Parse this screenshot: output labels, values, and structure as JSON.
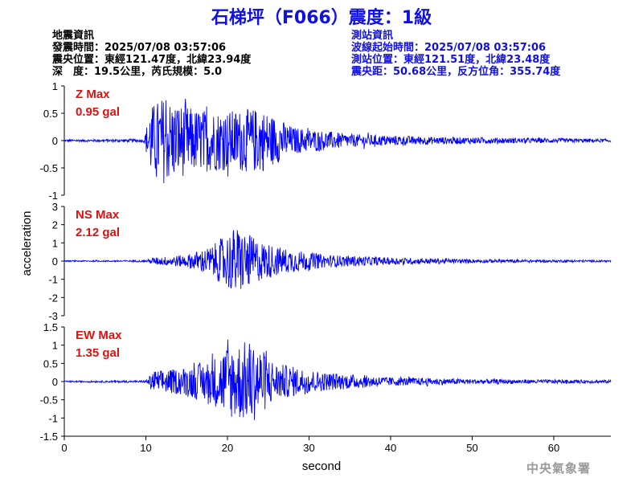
{
  "title": "石梯坪（F066）震度：1級",
  "quake_info": {
    "heading": "地震資訊",
    "origin_time": "發震時間：2025/07/08 03:57:06",
    "epicenter": "震央位置：東經121.47度，北緯23.94度",
    "depth_magnitude": "深　度：19.5公里，芮氏規模：5.0"
  },
  "station_info": {
    "heading": "測站資訊",
    "wave_start": "波線起始時間：2025/07/08 03:57:06",
    "station_location": "測站位置：東經121.51度，北緯23.48度",
    "distance_azimuth": "震央距：50.68公里，反方位角：355.74度"
  },
  "agency": "中央氣象署",
  "chart_data": [
    {
      "type": "line",
      "component": "Z",
      "label_line1": "Z Max",
      "label_line2": "0.95 gal",
      "max_gal": 0.95,
      "ylim": [
        -1,
        1
      ],
      "yticks": [
        "1",
        "0.5",
        "0",
        "-0.5",
        "-1"
      ],
      "envelope": {
        "x": [
          0,
          9.8,
          10.5,
          12,
          16,
          20,
          24,
          28,
          35,
          45,
          55,
          67
        ],
        "y": [
          0.02,
          0.03,
          0.62,
          0.8,
          0.58,
          0.55,
          0.6,
          0.25,
          0.12,
          0.07,
          0.05,
          0.03
        ]
      }
    },
    {
      "type": "line",
      "component": "NS",
      "label_line1": "NS Max",
      "label_line2": "2.12 gal",
      "max_gal": 2.12,
      "ylim": [
        -3,
        3
      ],
      "yticks": [
        "3",
        "2",
        "1",
        "0",
        "-1",
        "-2",
        "-3"
      ],
      "envelope": {
        "x": [
          0,
          10,
          11,
          15,
          18,
          21,
          24,
          27,
          32,
          40,
          50,
          67
        ],
        "y": [
          0.03,
          0.05,
          0.2,
          0.35,
          0.8,
          1.9,
          1.1,
          0.7,
          0.35,
          0.2,
          0.1,
          0.05
        ]
      }
    },
    {
      "type": "line",
      "component": "EW",
      "label_line1": "EW Max",
      "label_line2": "1.35 gal",
      "max_gal": 1.35,
      "ylim": [
        -1.5,
        1.5
      ],
      "yticks": [
        "1.5",
        "1",
        "0.5",
        "0",
        "-0.5",
        "-1",
        "-1.5"
      ],
      "envelope": {
        "x": [
          0,
          10,
          11,
          14,
          18,
          20,
          23,
          26,
          32,
          40,
          50,
          67
        ],
        "y": [
          0.02,
          0.03,
          0.3,
          0.35,
          0.6,
          1.0,
          1.15,
          0.5,
          0.25,
          0.12,
          0.07,
          0.04
        ]
      }
    }
  ],
  "x_axis": {
    "label": "second",
    "xlim": [
      0,
      67
    ],
    "ticks": [
      0,
      10,
      20,
      30,
      40,
      50,
      60
    ]
  },
  "y_axis": {
    "label": "acceleration"
  },
  "colors": {
    "trace": "#0000ff",
    "title": "#1010e0",
    "station_text": "#1010e0",
    "max_label": "#e01010",
    "agency": "#9a9a9a"
  }
}
